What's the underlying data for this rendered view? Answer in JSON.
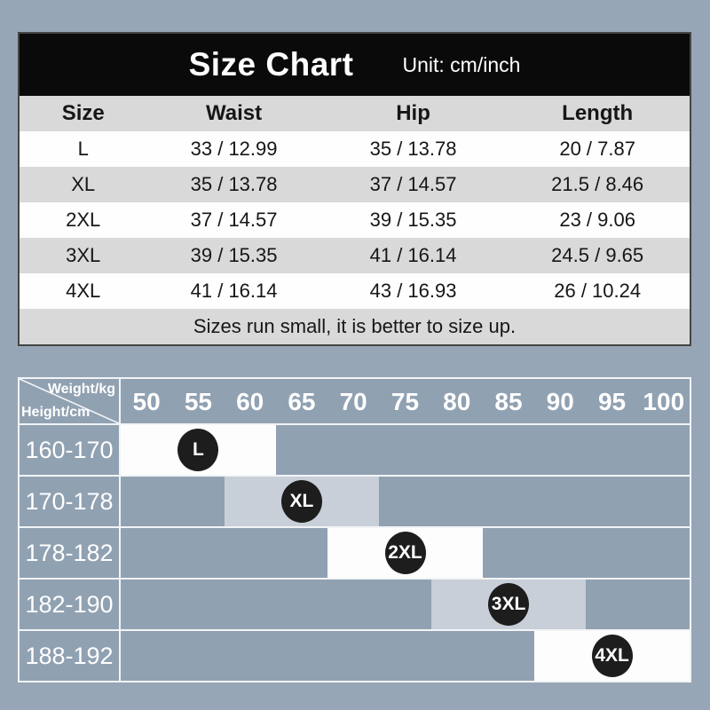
{
  "colors": {
    "page_bg": "#97a6b6",
    "header_bar_bg": "#0a0a0a",
    "table_border": "#454545",
    "row_gray": "#d9d9d9",
    "row_white": "#fefefe",
    "text_dark": "#161616",
    "text_light": "#ffffff",
    "matrix_bg": "#90a1b2",
    "grid_line": "#f2f4f6",
    "band_white": "#fdfdfe",
    "band_gray": "#c8cfd8",
    "circle_bg": "#1d1d1d"
  },
  "header": {
    "title": "Size Chart",
    "unit_label": "Unit: cm/inch"
  },
  "size_table": {
    "columns": [
      "Size",
      "Waist",
      "Hip",
      "Length"
    ],
    "rows": [
      [
        "L",
        "33 / 12.99",
        "35 / 13.78",
        "20 / 7.87"
      ],
      [
        "XL",
        "35 / 13.78",
        "37 / 14.57",
        "21.5 / 8.46"
      ],
      [
        "2XL",
        "37 / 14.57",
        "39 / 15.35",
        "23 / 9.06"
      ],
      [
        "3XL",
        "39 / 15.35",
        "41 / 16.14",
        "24.5 / 9.65"
      ],
      [
        "4XL",
        "41 / 16.14",
        "43 / 16.93",
        "26 / 10.24"
      ]
    ],
    "note": "Sizes run small, it is better to size up."
  },
  "fit_chart": {
    "corner_top_label": "Weight/kg",
    "corner_bottom_label": "Height/cm",
    "weight_labels": [
      "50",
      "55",
      "60",
      "65",
      "70",
      "75",
      "80",
      "85",
      "90",
      "95",
      "100"
    ],
    "rows": [
      {
        "height_range": "160-170",
        "size_label": "L",
        "band_start_col": 0,
        "band_span_cols": 3,
        "band_style": "white",
        "marker_col": 1
      },
      {
        "height_range": "170-178",
        "size_label": "XL",
        "band_start_col": 2,
        "band_span_cols": 3,
        "band_style": "gray",
        "marker_col": 3
      },
      {
        "height_range": "178-182",
        "size_label": "2XL",
        "band_start_col": 4,
        "band_span_cols": 3,
        "band_style": "white",
        "marker_col": 5
      },
      {
        "height_range": "182-190",
        "size_label": "3XL",
        "band_start_col": 6,
        "band_span_cols": 3,
        "band_style": "gray",
        "marker_col": 7
      },
      {
        "height_range": "188-192",
        "size_label": "4XL",
        "band_start_col": 8,
        "band_span_cols": 3,
        "band_style": "white",
        "marker_col": 9
      }
    ]
  },
  "chart_data": [
    {
      "type": "table",
      "title": "Size Chart",
      "unit": "cm/inch",
      "columns": [
        "Size",
        "Waist",
        "Hip",
        "Length"
      ],
      "rows": [
        [
          "L",
          "33 / 12.99",
          "35 / 13.78",
          "20 / 7.87"
        ],
        [
          "XL",
          "35 / 13.78",
          "37 / 14.57",
          "21.5 / 8.46"
        ],
        [
          "2XL",
          "37 / 14.57",
          "39 / 15.35",
          "23 / 9.06"
        ],
        [
          "3XL",
          "39 / 15.35",
          "41 / 16.14",
          "24.5 / 9.65"
        ],
        [
          "4XL",
          "41 / 16.14",
          "43 / 16.93",
          "26 / 10.24"
        ]
      ],
      "note": "Sizes run small, it is better to size up."
    },
    {
      "type": "heatmap",
      "xlabel": "Weight/kg",
      "ylabel": "Height/cm",
      "x": [
        50,
        55,
        60,
        65,
        70,
        75,
        80,
        85,
        90,
        95,
        100
      ],
      "y": [
        "160-170",
        "170-178",
        "178-182",
        "182-190",
        "188-192"
      ],
      "series": [
        {
          "name": "L",
          "height_cm": "160-170",
          "weight_kg_range": [
            50,
            60
          ],
          "marker_weight_kg": 55
        },
        {
          "name": "XL",
          "height_cm": "170-178",
          "weight_kg_range": [
            60,
            70
          ],
          "marker_weight_kg": 65
        },
        {
          "name": "2XL",
          "height_cm": "178-182",
          "weight_kg_range": [
            70,
            80
          ],
          "marker_weight_kg": 75
        },
        {
          "name": "3XL",
          "height_cm": "182-190",
          "weight_kg_range": [
            80,
            90
          ],
          "marker_weight_kg": 85
        },
        {
          "name": "4XL",
          "height_cm": "188-192",
          "weight_kg_range": [
            90,
            100
          ],
          "marker_weight_kg": 95
        }
      ],
      "legend": "off",
      "grid": "on"
    }
  ]
}
